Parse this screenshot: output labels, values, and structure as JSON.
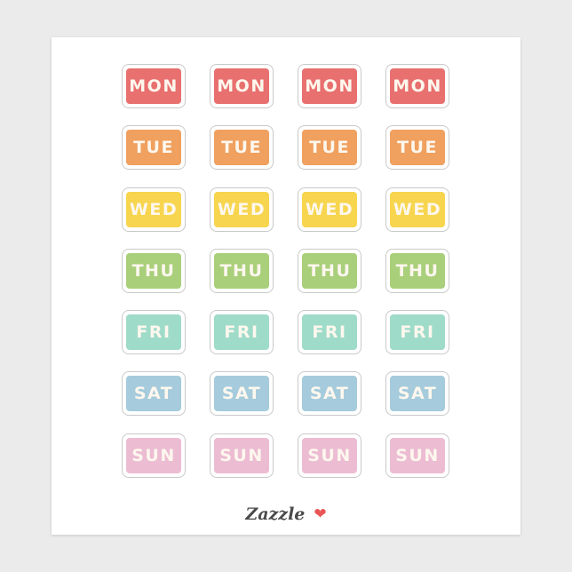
{
  "days": [
    {
      "label": "MON",
      "color": "#e8706f"
    },
    {
      "label": "TUE",
      "color": "#f0a05f"
    },
    {
      "label": "WED",
      "color": "#f7d54e"
    },
    {
      "label": "THU",
      "color": "#a9cf7a"
    },
    {
      "label": "FRI",
      "color": "#9fdbc9"
    },
    {
      "label": "SAT",
      "color": "#a5cbdc"
    },
    {
      "label": "SUN",
      "color": "#ecbcd3"
    }
  ],
  "columns_per_row": 4,
  "brand": {
    "name": "Zazzle",
    "icon": "heart-icon",
    "heart_color": "#e95656"
  }
}
